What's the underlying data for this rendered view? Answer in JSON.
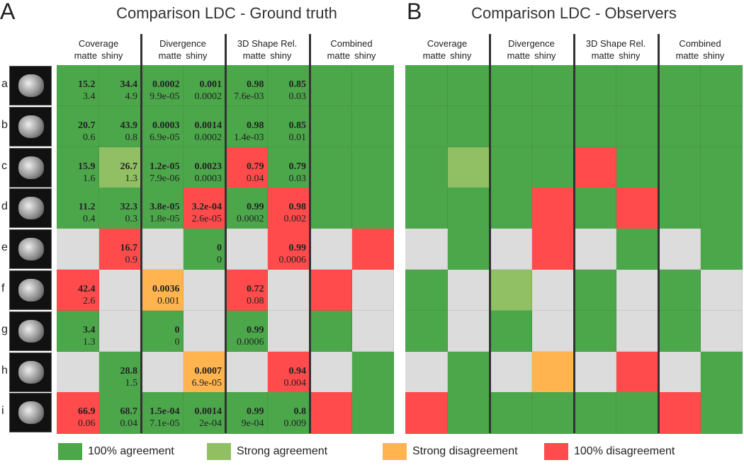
{
  "colors": {
    "G": "#4ca74b",
    "LG": "#90c063",
    "O": "#ffb450",
    "R": "#ff4b4b",
    "N": "#dcdcdc"
  },
  "panelA": {
    "letter": "A",
    "title": "Comparison LDC - Ground truth"
  },
  "panelB": {
    "letter": "B",
    "title": "Comparison LDC - Observers"
  },
  "groups": [
    "Coverage",
    "Divergence",
    "3D Shape Rel.",
    "Combined"
  ],
  "sub": [
    "matte",
    "shiny"
  ],
  "rows": [
    "a",
    "b",
    "c",
    "d",
    "e",
    "f",
    "g",
    "h",
    "i"
  ],
  "gridA": [
    [
      [
        "G",
        "15.2",
        "3.4"
      ],
      [
        "G",
        "34.4",
        "4.9"
      ],
      [
        "G",
        "0.0002",
        "9.9e-05"
      ],
      [
        "G",
        "0.001",
        "0.0002"
      ],
      [
        "G",
        "0.98",
        "7.6e-03"
      ],
      [
        "G",
        "0.85",
        "0.03"
      ],
      [
        "G"
      ],
      [
        "G"
      ]
    ],
    [
      [
        "G",
        "20.7",
        "0.6"
      ],
      [
        "G",
        "43.9",
        "0.8"
      ],
      [
        "G",
        "0.0003",
        "6.9e-05"
      ],
      [
        "G",
        "0.0014",
        "0.0002"
      ],
      [
        "G",
        "0.98",
        "1.4e-03"
      ],
      [
        "G",
        "0.85",
        "0.01"
      ],
      [
        "G"
      ],
      [
        "G"
      ]
    ],
    [
      [
        "G",
        "15.9",
        "1.6"
      ],
      [
        "LG",
        "26.7",
        "1.3"
      ],
      [
        "G",
        "1.2e-05",
        "7.9e-06"
      ],
      [
        "G",
        "0.0023",
        "0.0003"
      ],
      [
        "R",
        "0.79",
        "0.04"
      ],
      [
        "G",
        "0.79",
        "0.03"
      ],
      [
        "G"
      ],
      [
        "G"
      ]
    ],
    [
      [
        "G",
        "11.2",
        "0.4"
      ],
      [
        "G",
        "32.3",
        "0.3"
      ],
      [
        "G",
        "3.8e-05",
        "1.8e-05"
      ],
      [
        "R",
        "3.2e-04",
        "2.6e-05"
      ],
      [
        "G",
        "0.99",
        "0.0002"
      ],
      [
        "R",
        "0.98",
        "0.002"
      ],
      [
        "G"
      ],
      [
        "G"
      ]
    ],
    [
      [
        "N"
      ],
      [
        "R",
        "16.7",
        "0.9"
      ],
      [
        "N"
      ],
      [
        "G",
        "0",
        "0"
      ],
      [
        "N"
      ],
      [
        "R",
        "0.99",
        "0.0006"
      ],
      [
        "N"
      ],
      [
        "R"
      ]
    ],
    [
      [
        "R",
        "42.4",
        "2.6"
      ],
      [
        "N"
      ],
      [
        "O",
        "0.0036",
        "0.001"
      ],
      [
        "N"
      ],
      [
        "R",
        "0.72",
        "0.08"
      ],
      [
        "N"
      ],
      [
        "R"
      ],
      [
        "N"
      ]
    ],
    [
      [
        "G",
        "3.4",
        "1.3"
      ],
      [
        "N"
      ],
      [
        "G",
        "0",
        "0"
      ],
      [
        "N"
      ],
      [
        "G",
        "0.99",
        "0.0006"
      ],
      [
        "N"
      ],
      [
        "G"
      ],
      [
        "N"
      ]
    ],
    [
      [
        "N"
      ],
      [
        "G",
        "28.8",
        "1.5"
      ],
      [
        "N"
      ],
      [
        "O",
        "0.0007",
        "6.9e-05"
      ],
      [
        "N"
      ],
      [
        "R",
        "0.94",
        "0.004"
      ],
      [
        "N"
      ],
      [
        "G"
      ]
    ],
    [
      [
        "R",
        "66.9",
        "0.06"
      ],
      [
        "G",
        "68.7",
        "0.04"
      ],
      [
        "G",
        "1.5e-04",
        "7.1e-05"
      ],
      [
        "G",
        "0.0014",
        "2e-04"
      ],
      [
        "G",
        "0.99",
        "9e-04"
      ],
      [
        "G",
        "0.8",
        "0.009"
      ],
      [
        "R"
      ],
      [
        "G"
      ]
    ]
  ],
  "gridB": [
    [
      "G",
      "G",
      "G",
      "G",
      "G",
      "G",
      "G",
      "G"
    ],
    [
      "G",
      "G",
      "G",
      "G",
      "G",
      "G",
      "G",
      "G"
    ],
    [
      "G",
      "LG",
      "G",
      "G",
      "R",
      "G",
      "G",
      "G"
    ],
    [
      "G",
      "G",
      "G",
      "R",
      "G",
      "R",
      "G",
      "G"
    ],
    [
      "N",
      "G",
      "N",
      "R",
      "N",
      "G",
      "N",
      "G"
    ],
    [
      "G",
      "N",
      "LG",
      "N",
      "G",
      "N",
      "G",
      "N"
    ],
    [
      "G",
      "N",
      "G",
      "N",
      "G",
      "N",
      "G",
      "N"
    ],
    [
      "N",
      "G",
      "N",
      "O",
      "N",
      "R",
      "N",
      "G"
    ],
    [
      "R",
      "G",
      "G",
      "G",
      "G",
      "G",
      "R",
      "G"
    ]
  ],
  "legend": [
    {
      "color": "G",
      "label": "100% agreement"
    },
    {
      "color": "LG",
      "label": "Strong agreement"
    },
    {
      "color": "O",
      "label": "Strong disagreement"
    },
    {
      "color": "R",
      "label": "100% disagreement"
    }
  ]
}
